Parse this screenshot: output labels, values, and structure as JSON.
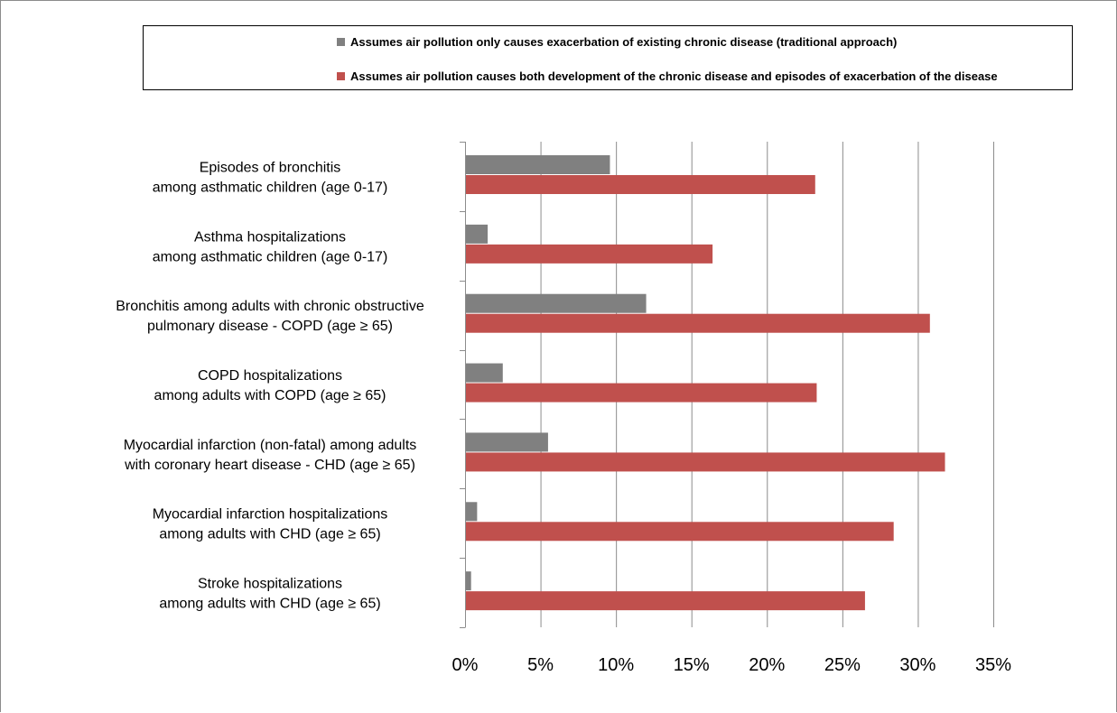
{
  "chart_data": {
    "type": "bar",
    "orientation": "horizontal",
    "categories": [
      [
        "Episodes of bronchitis",
        "among asthmatic children (age 0-17)"
      ],
      [
        "Asthma hospitalizations",
        "among asthmatic children (age 0-17)"
      ],
      [
        "Bronchitis among adults with chronic obstructive",
        "pulmonary disease - COPD (age ≥ 65)"
      ],
      [
        "COPD hospitalizations",
        "among adults with COPD (age ≥ 65)"
      ],
      [
        "Myocardial infarction (non-fatal) among adults",
        "with coronary heart disease - CHD (age ≥ 65)"
      ],
      [
        "Myocardial infarction hospitalizations",
        "among adults with CHD (age ≥ 65)"
      ],
      [
        "Stroke hospitalizations",
        "among adults with CHD (age ≥ 65)"
      ]
    ],
    "series": [
      {
        "name": "Assumes air pollution only causes exacerbation of existing chronic disease (traditional approach)",
        "color": "#808080",
        "values": [
          9.6,
          1.5,
          12.0,
          2.5,
          5.5,
          0.8,
          0.4
        ]
      },
      {
        "name": "Assumes air pollution causes both development of the chronic disease and episodes of exacerbation of the disease",
        "color": "#c0504d",
        "values": [
          23.2,
          16.4,
          30.8,
          23.3,
          31.8,
          28.4,
          26.5
        ]
      }
    ],
    "xlim": [
      0,
      35
    ],
    "xticks": [
      0,
      5,
      10,
      15,
      20,
      25,
      30,
      35
    ],
    "tick_format": "%",
    "gridlines": "vertical",
    "legend_position": "top",
    "title": "",
    "xlabel": "",
    "ylabel": ""
  }
}
